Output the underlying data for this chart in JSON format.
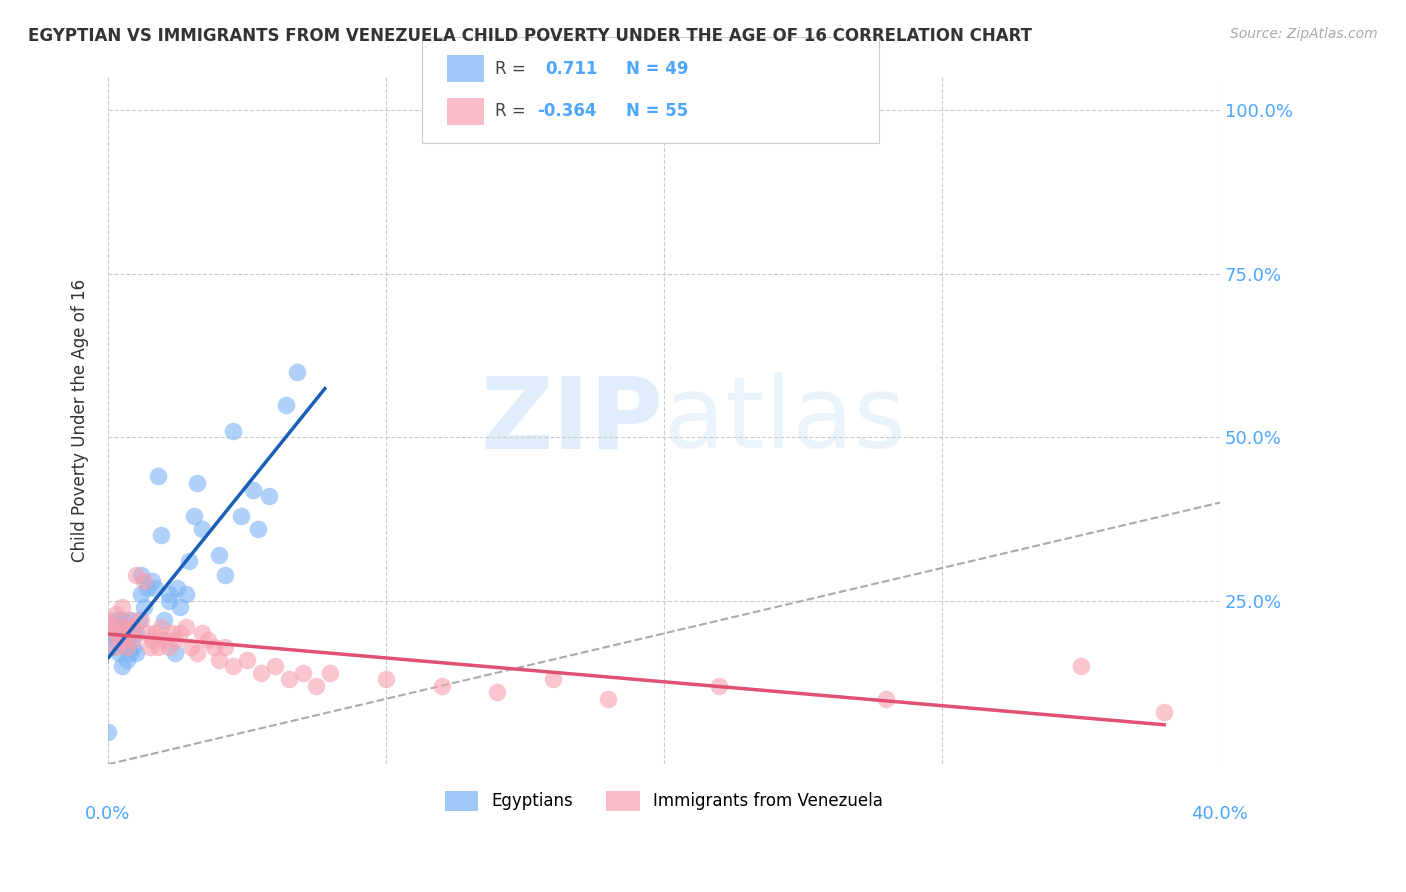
{
  "title": "EGYPTIAN VS IMMIGRANTS FROM VENEZUELA CHILD POVERTY UNDER THE AGE OF 16 CORRELATION CHART",
  "source": "Source: ZipAtlas.com",
  "ylabel": "Child Poverty Under the Age of 16",
  "ytick_labels": [
    "100.0%",
    "75.0%",
    "50.0%",
    "25.0%"
  ],
  "ytick_color": "#4da6ff",
  "xtick_color": "#4da6ff",
  "background_color": "#ffffff",
  "grid_color": "#cccccc",
  "watermark_zip": "ZIP",
  "watermark_atlas": "atlas",
  "egyptian_color": "#7ab3f5",
  "venezuela_color": "#f5a0b0",
  "egyptian_line_color": "#1a5eb8",
  "venezuela_line_color": "#e05070",
  "egyptian_R": 0.711,
  "egyptian_N": 49,
  "venezuela_R": -0.364,
  "venezuela_N": 55,
  "legend_label1": "Egyptians",
  "legend_label2": "Immigrants from Venezuela",
  "xlim": [
    0.0,
    0.4
  ],
  "ylim": [
    0.0,
    1.05
  ],
  "egyptian_x": [
    0.0,
    0.001,
    0.002,
    0.003,
    0.003,
    0.004,
    0.004,
    0.005,
    0.005,
    0.005,
    0.006,
    0.006,
    0.007,
    0.007,
    0.008,
    0.008,
    0.009,
    0.009,
    0.01,
    0.01,
    0.011,
    0.012,
    0.012,
    0.013,
    0.014,
    0.016,
    0.017,
    0.018,
    0.019,
    0.02,
    0.022,
    0.022,
    0.024,
    0.025,
    0.026,
    0.028,
    0.029,
    0.031,
    0.032,
    0.034,
    0.04,
    0.042,
    0.045,
    0.048,
    0.052,
    0.054,
    0.058,
    0.064,
    0.068
  ],
  "egyptian_y": [
    0.05,
    0.18,
    0.2,
    0.19,
    0.22,
    0.17,
    0.21,
    0.15,
    0.2,
    0.22,
    0.18,
    0.2,
    0.16,
    0.19,
    0.17,
    0.22,
    0.18,
    0.2,
    0.2,
    0.17,
    0.22,
    0.29,
    0.26,
    0.24,
    0.27,
    0.28,
    0.27,
    0.44,
    0.35,
    0.22,
    0.25,
    0.26,
    0.17,
    0.27,
    0.24,
    0.26,
    0.31,
    0.38,
    0.43,
    0.36,
    0.32,
    0.29,
    0.51,
    0.38,
    0.42,
    0.36,
    0.41,
    0.55,
    0.6
  ],
  "venezuela_x": [
    0.0,
    0.001,
    0.002,
    0.003,
    0.003,
    0.004,
    0.004,
    0.005,
    0.005,
    0.006,
    0.006,
    0.007,
    0.008,
    0.008,
    0.009,
    0.009,
    0.01,
    0.012,
    0.013,
    0.014,
    0.015,
    0.016,
    0.017,
    0.018,
    0.019,
    0.02,
    0.022,
    0.023,
    0.024,
    0.026,
    0.028,
    0.03,
    0.032,
    0.034,
    0.036,
    0.038,
    0.04,
    0.042,
    0.045,
    0.05,
    0.055,
    0.06,
    0.065,
    0.07,
    0.075,
    0.08,
    0.1,
    0.12,
    0.14,
    0.16,
    0.18,
    0.22,
    0.28,
    0.35,
    0.38
  ],
  "venezuela_y": [
    0.22,
    0.21,
    0.2,
    0.23,
    0.18,
    0.21,
    0.2,
    0.24,
    0.19,
    0.2,
    0.21,
    0.18,
    0.22,
    0.2,
    0.19,
    0.21,
    0.29,
    0.22,
    0.28,
    0.2,
    0.18,
    0.19,
    0.2,
    0.18,
    0.21,
    0.19,
    0.18,
    0.2,
    0.19,
    0.2,
    0.21,
    0.18,
    0.17,
    0.2,
    0.19,
    0.18,
    0.16,
    0.18,
    0.15,
    0.16,
    0.14,
    0.15,
    0.13,
    0.14,
    0.12,
    0.14,
    0.13,
    0.12,
    0.11,
    0.13,
    0.1,
    0.12,
    0.1,
    0.15,
    0.08
  ]
}
